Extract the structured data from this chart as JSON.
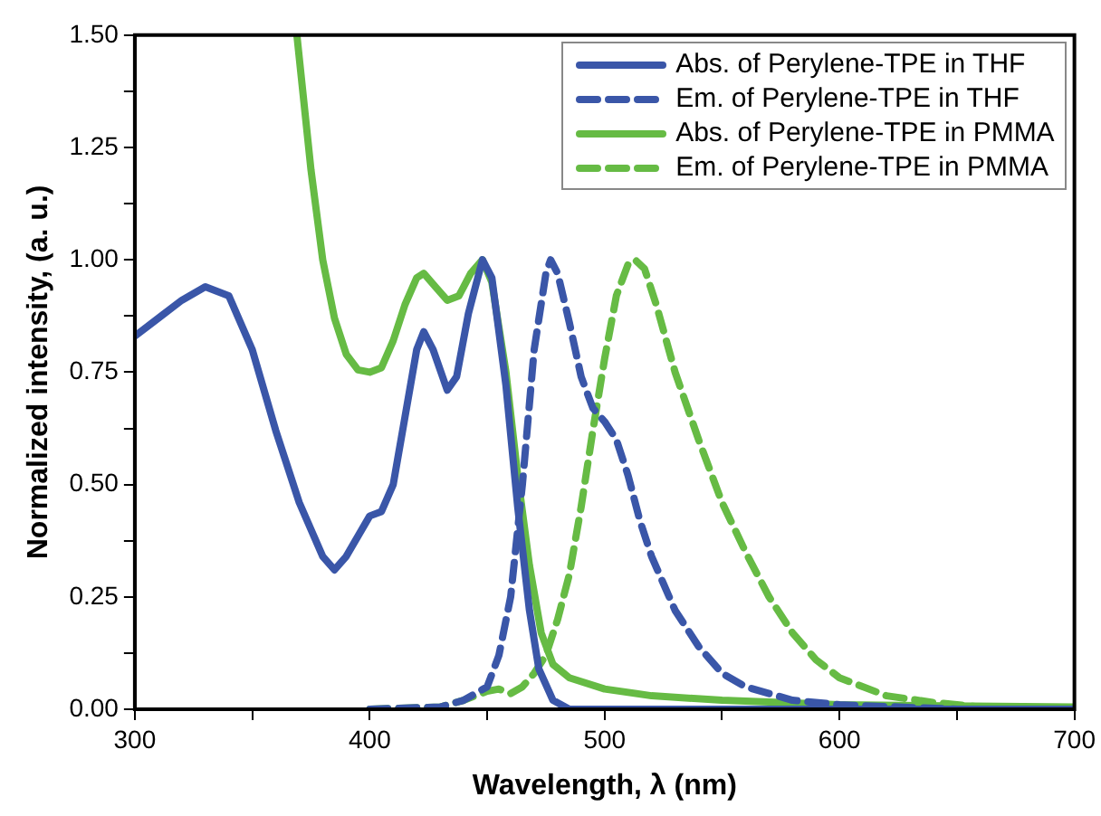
{
  "chart_data": {
    "type": "line",
    "xlabel": "Wavelength, λ (nm)",
    "ylabel": "Normalized intensity, (a. u.)",
    "xlim": [
      300,
      700
    ],
    "ylim": [
      0,
      1.5
    ],
    "xticks": [
      300,
      {
        "value": 350,
        "label": null
      },
      400,
      {
        "value": 450,
        "label": null
      },
      500,
      {
        "value": 550,
        "label": null
      },
      600,
      {
        "value": 650,
        "label": null
      },
      700
    ],
    "yticks": [
      {
        "value": 0,
        "label": "0.00"
      },
      {
        "value": 0.125,
        "label": null
      },
      {
        "value": 0.25,
        "label": "0.25"
      },
      {
        "value": 0.375,
        "label": null
      },
      {
        "value": 0.5,
        "label": "0.50"
      },
      {
        "value": 0.625,
        "label": null
      },
      {
        "value": 0.75,
        "label": "0.75"
      },
      {
        "value": 0.875,
        "label": null
      },
      {
        "value": 1,
        "label": "1.00"
      },
      {
        "value": 1.125,
        "label": null
      },
      {
        "value": 1.25,
        "label": "1.25"
      },
      {
        "value": 1.375,
        "label": null
      },
      {
        "value": 1.5,
        "label": "1.50"
      }
    ],
    "grid": false,
    "legend": "top right",
    "marker": "none",
    "series": [
      {
        "name": "Abs. of Perylene-TPE in THF",
        "color": "#3a56a8",
        "line_style": "solid",
        "x": [
          300,
          310,
          320,
          330,
          340,
          350,
          360,
          370,
          380,
          385,
          390,
          400,
          405,
          410,
          415,
          420,
          423,
          427,
          433,
          437,
          442,
          448,
          452,
          458,
          463,
          468,
          472,
          478,
          485,
          500,
          550,
          600,
          700
        ],
        "values": [
          0.83,
          0.87,
          0.91,
          0.94,
          0.92,
          0.8,
          0.62,
          0.46,
          0.34,
          0.31,
          0.34,
          0.43,
          0.44,
          0.5,
          0.65,
          0.8,
          0.84,
          0.8,
          0.71,
          0.74,
          0.88,
          1.0,
          0.96,
          0.72,
          0.45,
          0.22,
          0.09,
          0.02,
          0.0,
          0.0,
          0.0,
          0.0,
          0.0
        ]
      },
      {
        "name": "Em. of Perylene-TPE in THF",
        "color": "#3a56a8",
        "line_style": "dashed",
        "x": [
          400,
          430,
          440,
          450,
          455,
          460,
          465,
          470,
          475,
          477,
          480,
          485,
          490,
          495,
          500,
          505,
          510,
          515,
          520,
          530,
          540,
          550,
          560,
          580,
          600,
          650,
          700
        ],
        "values": [
          0.0,
          0.005,
          0.02,
          0.05,
          0.12,
          0.25,
          0.5,
          0.8,
          0.97,
          1.0,
          0.97,
          0.86,
          0.74,
          0.67,
          0.64,
          0.6,
          0.52,
          0.42,
          0.34,
          0.22,
          0.14,
          0.08,
          0.05,
          0.02,
          0.01,
          0.0,
          0.0
        ]
      },
      {
        "name": "Abs. of Perylene-TPE in PMMA",
        "color": "#66bb44",
        "line_style": "solid",
        "x": [
          369,
          372,
          375,
          380,
          385,
          390,
          395,
          400,
          405,
          410,
          415,
          420,
          423,
          428,
          433,
          438,
          443,
          448,
          452,
          458,
          463,
          468,
          473,
          478,
          485,
          500,
          520,
          550,
          600,
          700
        ],
        "values": [
          1.5,
          1.35,
          1.2,
          1.0,
          0.87,
          0.79,
          0.755,
          0.75,
          0.76,
          0.82,
          0.9,
          0.96,
          0.97,
          0.94,
          0.91,
          0.92,
          0.97,
          1.0,
          0.95,
          0.75,
          0.52,
          0.32,
          0.17,
          0.1,
          0.07,
          0.045,
          0.03,
          0.02,
          0.01,
          0.005
        ]
      },
      {
        "name": "Em. of Perylene-TPE in PMMA",
        "color": "#66bb44",
        "line_style": "dashed",
        "x": [
          400,
          430,
          440,
          450,
          455,
          460,
          465,
          470,
          475,
          480,
          485,
          490,
          495,
          500,
          505,
          510,
          513,
          517,
          522,
          530,
          540,
          550,
          560,
          570,
          580,
          590,
          600,
          620,
          640,
          660,
          700
        ],
        "values": [
          0.0,
          0.005,
          0.02,
          0.04,
          0.045,
          0.035,
          0.05,
          0.08,
          0.12,
          0.2,
          0.3,
          0.45,
          0.62,
          0.78,
          0.92,
          0.99,
          1.0,
          0.98,
          0.9,
          0.75,
          0.6,
          0.46,
          0.35,
          0.25,
          0.17,
          0.11,
          0.07,
          0.03,
          0.015,
          0.005,
          0.0
        ]
      }
    ]
  }
}
